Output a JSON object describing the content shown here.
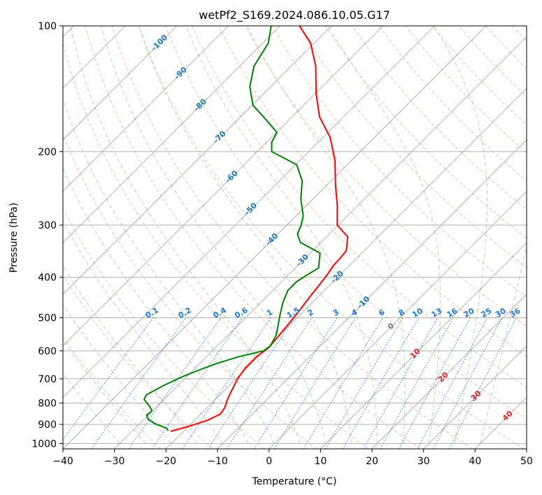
{
  "chart_data": {
    "type": "line",
    "title": "wetPf2_S169.2024.086.10.05.G17",
    "xlabel": "Temperature (°C)",
    "ylabel": "Pressure (hPa)",
    "xlim": [
      -40,
      50
    ],
    "ylim": [
      1030,
      100
    ],
    "y_scale": "log",
    "skew": "skew-T",
    "x_ticks": [
      -40,
      -30,
      -20,
      -10,
      0,
      10,
      20,
      30,
      40,
      50
    ],
    "y_ticks": [
      100,
      200,
      300,
      400,
      500,
      600,
      700,
      800,
      900,
      1000
    ],
    "grid": true,
    "series": [
      {
        "role": "temperature",
        "color": "#ff0000",
        "points": [
          [
            -22.5,
            935
          ],
          [
            -20,
            910
          ],
          [
            -17.5,
            880
          ],
          [
            -16.2,
            850
          ],
          [
            -16.6,
            820
          ],
          [
            -17.5,
            790
          ],
          [
            -18.5,
            750
          ],
          [
            -19.7,
            700
          ],
          [
            -20.3,
            660
          ],
          [
            -20.3,
            620
          ],
          [
            -19.7,
            590
          ],
          [
            -20.2,
            540
          ],
          [
            -20.8,
            490
          ],
          [
            -21.7,
            440
          ],
          [
            -22,
            420
          ],
          [
            -22.5,
            395
          ],
          [
            -23.1,
            375
          ],
          [
            -23.2,
            360
          ],
          [
            -23.5,
            345
          ],
          [
            -25.9,
            320
          ],
          [
            -30.2,
            300
          ],
          [
            -33.9,
            270
          ],
          [
            -38.4,
            240
          ],
          [
            -43.2,
            210
          ],
          [
            -48.6,
            185
          ],
          [
            -54.7,
            165
          ],
          [
            -59.9,
            145
          ],
          [
            -65.2,
            125
          ],
          [
            -70.7,
            110
          ],
          [
            -76.2,
            100
          ]
        ]
      },
      {
        "role": "dewpoint",
        "color": "#008000",
        "points": [
          [
            -23.1,
            932
          ],
          [
            -23.8,
            920
          ],
          [
            -27.2,
            895
          ],
          [
            -29.2,
            875
          ],
          [
            -30.3,
            855
          ],
          [
            -30.1,
            835
          ],
          [
            -31.4,
            815
          ],
          [
            -33.8,
            785
          ],
          [
            -34.3,
            765
          ],
          [
            -32.7,
            725
          ],
          [
            -30.7,
            690
          ],
          [
            -28.7,
            665
          ],
          [
            -26.9,
            645
          ],
          [
            -23.8,
            620
          ],
          [
            -20.1,
            600
          ],
          [
            -19.7,
            585
          ],
          [
            -20.7,
            550
          ],
          [
            -22.3,
            520
          ],
          [
            -24,
            490
          ],
          [
            -25.7,
            460
          ],
          [
            -27.1,
            430
          ],
          [
            -27.1,
            410
          ],
          [
            -26.4,
            395
          ],
          [
            -25.5,
            380
          ],
          [
            -28.1,
            350
          ],
          [
            -34,
            330
          ],
          [
            -36.2,
            315
          ],
          [
            -37.2,
            300
          ],
          [
            -38.6,
            285
          ],
          [
            -42.3,
            260
          ],
          [
            -45.6,
            235
          ],
          [
            -49.8,
            215
          ],
          [
            -57.2,
            200
          ],
          [
            -59,
            190
          ],
          [
            -59.9,
            180
          ],
          [
            -63.6,
            170
          ],
          [
            -69.8,
            155
          ],
          [
            -74,
            140
          ],
          [
            -77.2,
            125
          ],
          [
            -78.9,
            110
          ],
          [
            -81.7,
            100
          ]
        ]
      }
    ],
    "isotherm_labels": [
      "-100",
      "-90",
      "-80",
      "-70",
      "-60",
      "-50",
      "-40",
      "-30",
      "-20",
      "-10",
      "0",
      "10",
      "20",
      "30",
      "40"
    ],
    "mixing_ratio_labels": [
      "0.1",
      "0.2",
      "0.4",
      "0.6",
      "1",
      "1.5",
      "2",
      "3",
      "4",
      "6",
      "8",
      "10",
      "13",
      "16",
      "20",
      "25",
      "30",
      "36"
    ]
  },
  "colors": {
    "temperature": "#ff0000",
    "dewpoint": "#008000",
    "isotherm": "#555555",
    "dry_adiabat": "#f2a585",
    "moist_adiabat": "#9ccf9c",
    "mixing_ratio": "#1f77d4",
    "isotherm_label_cold": "#1f77b4",
    "isotherm_label_warm": "#d62728",
    "isobar": "#b0b0b0"
  }
}
